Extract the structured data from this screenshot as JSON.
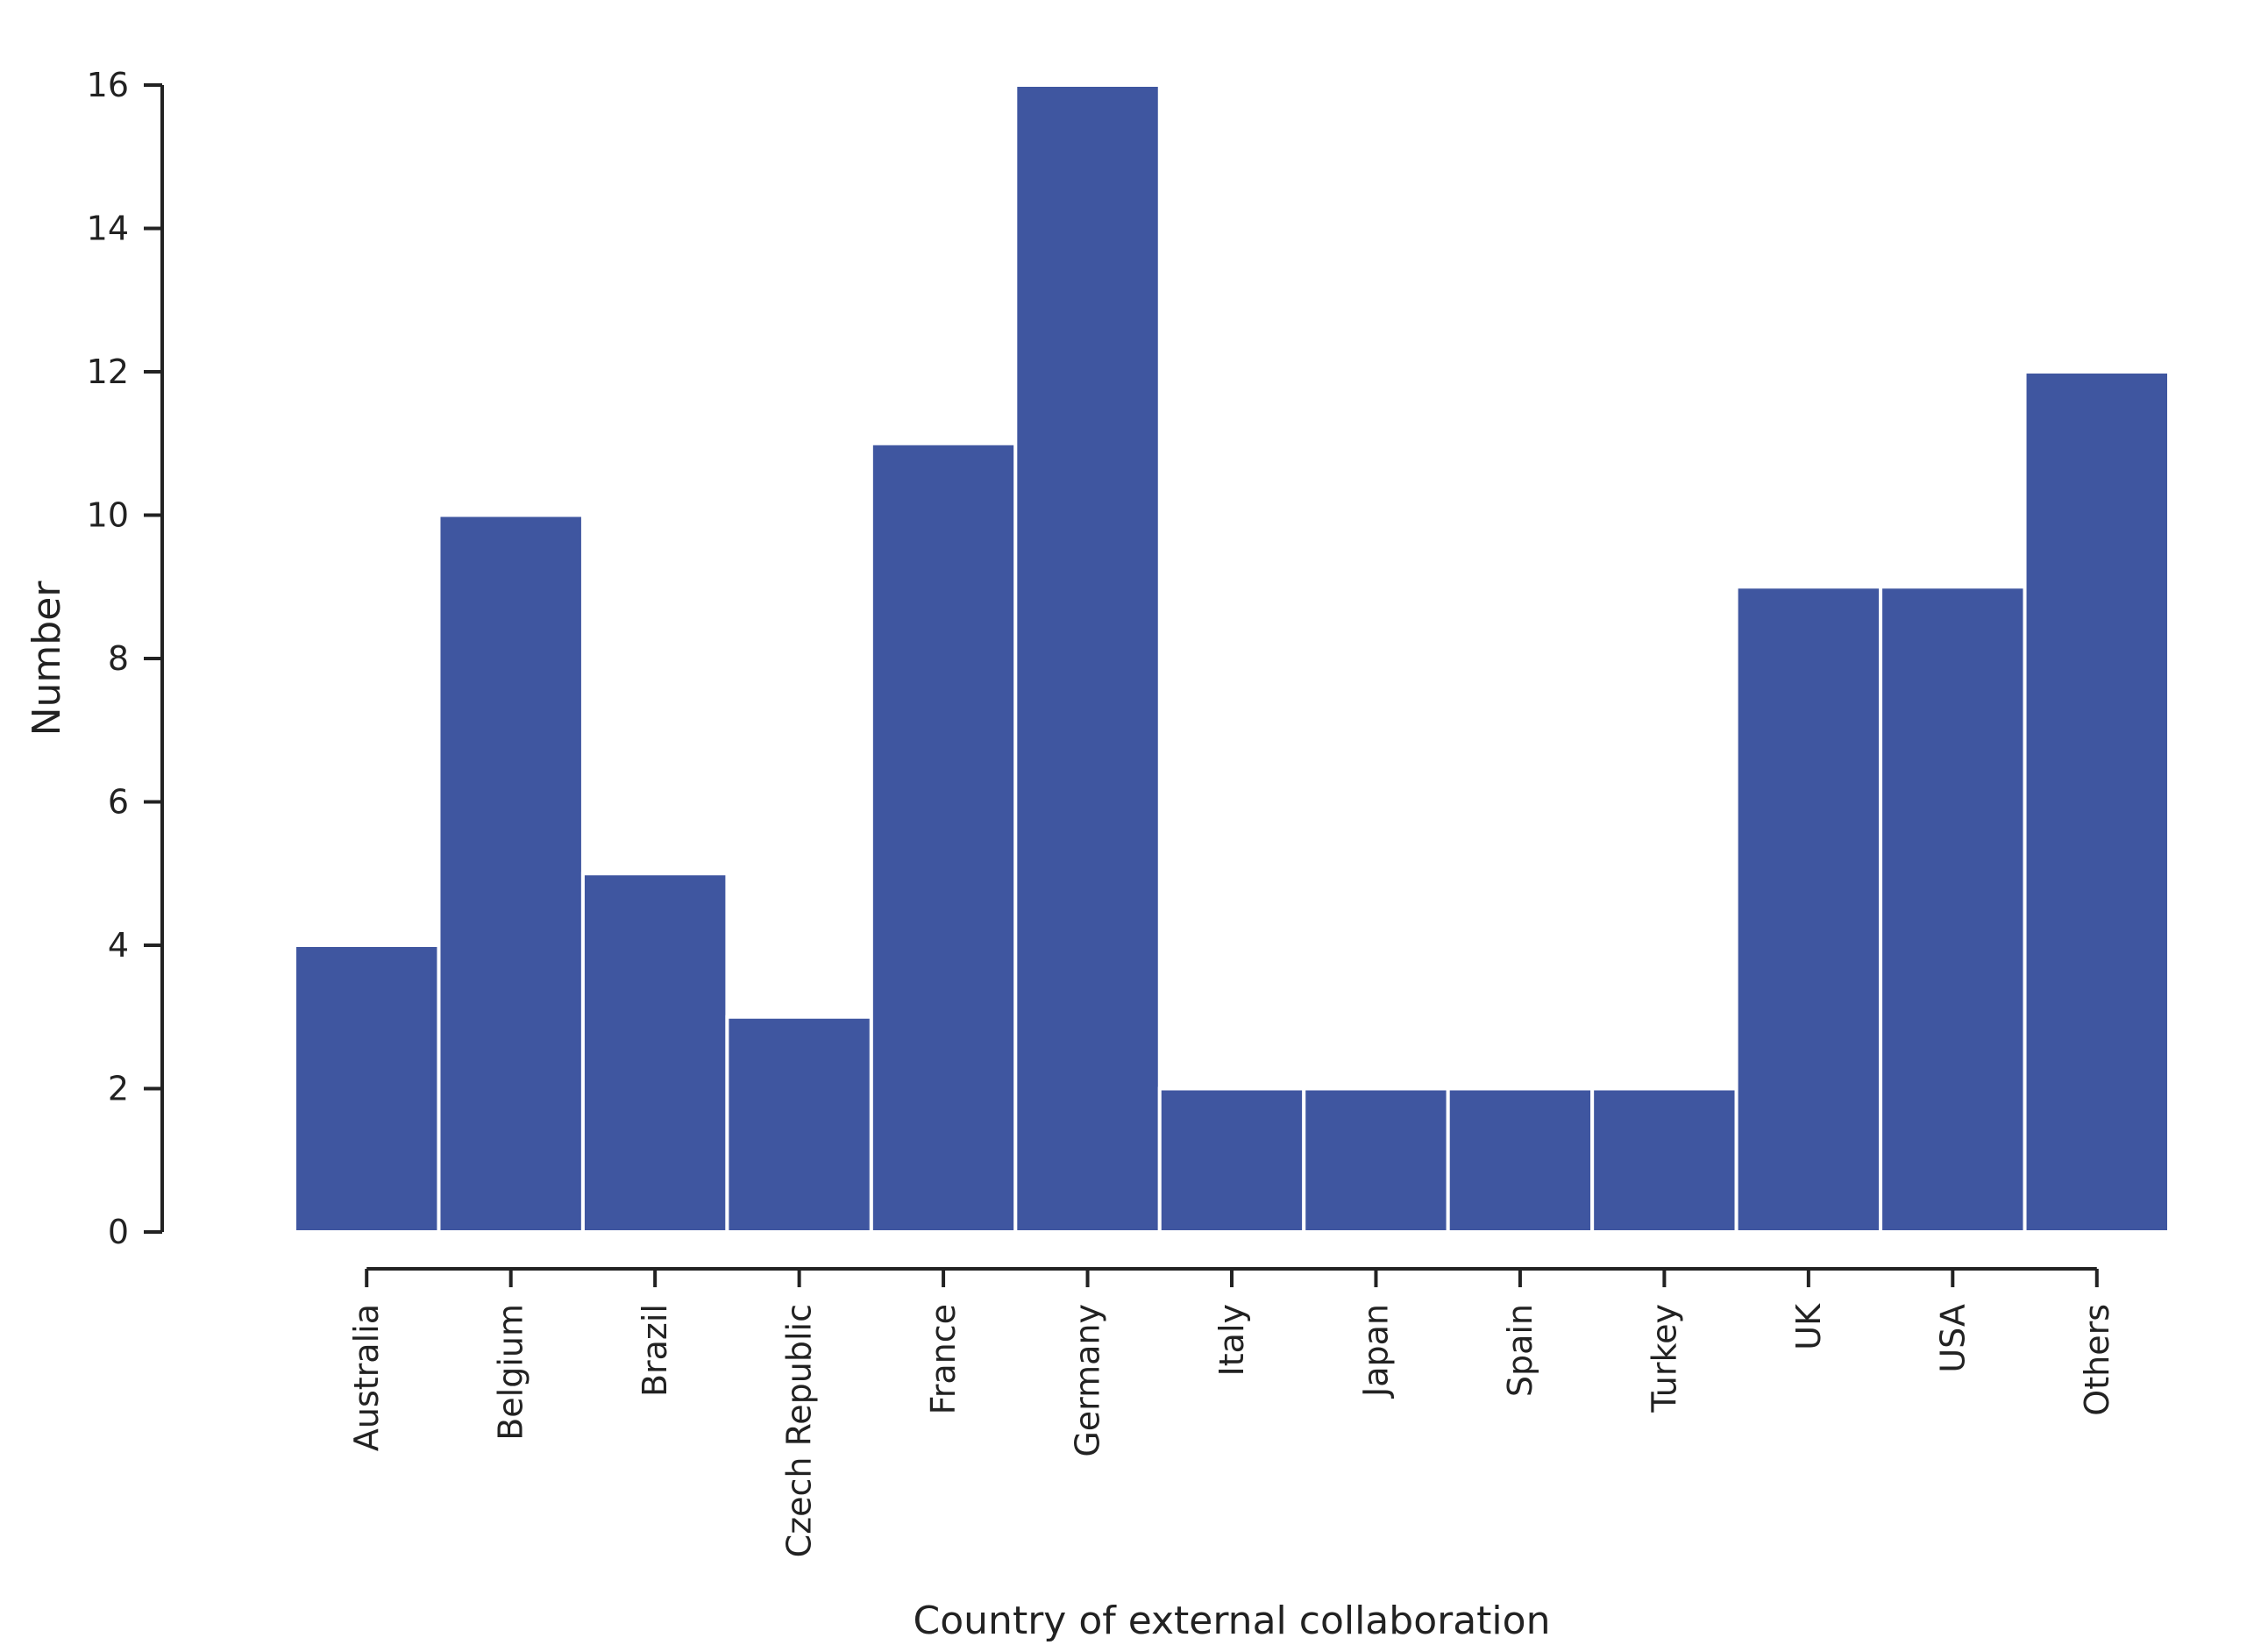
{
  "chart_data": {
    "type": "bar",
    "title": "",
    "xlabel": "Country of external collaboration",
    "ylabel": "Number",
    "categories": [
      "Australia",
      "Belgium",
      "Brazil",
      "Czech Republic",
      "France",
      "Germany",
      "Italy",
      "Japan",
      "Spain",
      "Turkey",
      "UK",
      "USA",
      "Others"
    ],
    "values": [
      4,
      10,
      5,
      3,
      11,
      16,
      2,
      2,
      2,
      2,
      9,
      9,
      12
    ],
    "ylim": [
      0,
      16
    ],
    "yticks": [
      0,
      2,
      4,
      6,
      8,
      10,
      12,
      14,
      16
    ],
    "bar_color": "#3f56a0",
    "grid": false,
    "legend": "none"
  }
}
